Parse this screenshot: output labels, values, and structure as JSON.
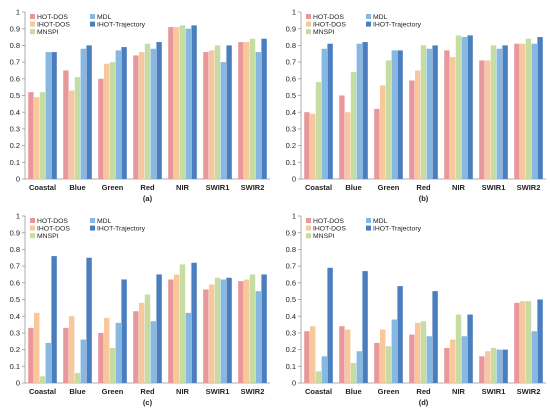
{
  "categories": [
    "Coastal",
    "Blue",
    "Green",
    "Red",
    "NIR",
    "SWIR1",
    "SWIR2"
  ],
  "chart_data": [
    {
      "type": "bar",
      "caption": "(a)",
      "categories": [
        "Coastal",
        "Blue",
        "Green",
        "Red",
        "NIR",
        "SWIR1",
        "SWIR2"
      ],
      "ylim": [
        0,
        1
      ],
      "yticks": [
        0,
        0.1,
        0.2,
        0.3,
        0.4,
        0.5,
        0.6,
        0.7,
        0.8,
        0.9,
        1
      ],
      "grid": false,
      "legend_position": "top-left",
      "series": [
        {
          "name": "HOT-DOS",
          "color": "#e8989b",
          "values": [
            0.52,
            0.65,
            0.6,
            0.74,
            0.91,
            0.76,
            0.82
          ]
        },
        {
          "name": "IHOT-DOS",
          "color": "#f8c89c",
          "values": [
            0.49,
            0.53,
            0.69,
            0.76,
            0.91,
            0.77,
            0.82
          ]
        },
        {
          "name": "MNSPI",
          "color": "#c5dca3",
          "values": [
            0.52,
            0.61,
            0.7,
            0.81,
            0.92,
            0.8,
            0.84
          ]
        },
        {
          "name": "MDL",
          "color": "#86b8e2",
          "values": [
            0.76,
            0.78,
            0.77,
            0.78,
            0.9,
            0.7,
            0.76
          ]
        },
        {
          "name": "IHOT-Trajectory",
          "color": "#4a7ebf",
          "values": [
            0.76,
            0.8,
            0.79,
            0.82,
            0.92,
            0.8,
            0.84
          ]
        }
      ]
    },
    {
      "type": "bar",
      "caption": "(b)",
      "categories": [
        "Coastal",
        "Blue",
        "Green",
        "Red",
        "NIR",
        "SWIR1",
        "SWIR2"
      ],
      "ylim": [
        0,
        1
      ],
      "yticks": [
        0,
        0.1,
        0.2,
        0.3,
        0.4,
        0.5,
        0.6,
        0.7,
        0.8,
        0.9,
        1
      ],
      "grid": false,
      "legend_position": "top-left",
      "series": [
        {
          "name": "HOT-DOS",
          "color": "#e8989b",
          "values": [
            0.4,
            0.5,
            0.42,
            0.59,
            0.77,
            0.71,
            0.81
          ]
        },
        {
          "name": "IHOT-DOS",
          "color": "#f8c89c",
          "values": [
            0.39,
            0.4,
            0.56,
            0.65,
            0.73,
            0.71,
            0.81
          ]
        },
        {
          "name": "MNSPI",
          "color": "#c5dca3",
          "values": [
            0.58,
            0.64,
            0.71,
            0.8,
            0.86,
            0.8,
            0.84
          ]
        },
        {
          "name": "MDL",
          "color": "#86b8e2",
          "values": [
            0.78,
            0.81,
            0.77,
            0.78,
            0.85,
            0.78,
            0.81
          ]
        },
        {
          "name": "IHOT-Trajectory",
          "color": "#4a7ebf",
          "values": [
            0.81,
            0.82,
            0.77,
            0.8,
            0.86,
            0.8,
            0.85
          ]
        }
      ]
    },
    {
      "type": "bar",
      "caption": "(c)",
      "categories": [
        "Coastal",
        "Blue",
        "Green",
        "Red",
        "NIR",
        "SWIR1",
        "SWIR2"
      ],
      "ylim": [
        0,
        1
      ],
      "yticks": [
        0,
        0.1,
        0.2,
        0.3,
        0.4,
        0.5,
        0.6,
        0.7,
        0.8,
        0.9,
        1
      ],
      "grid": false,
      "legend_position": "top-left",
      "series": [
        {
          "name": "HOT-DOS",
          "color": "#e8989b",
          "values": [
            0.33,
            0.33,
            0.3,
            0.43,
            0.62,
            0.56,
            0.61
          ]
        },
        {
          "name": "IHOT-DOS",
          "color": "#f8c89c",
          "values": [
            0.42,
            0.4,
            0.39,
            0.48,
            0.65,
            0.59,
            0.62
          ]
        },
        {
          "name": "MNSPI",
          "color": "#c5dca3",
          "values": [
            0.04,
            0.06,
            0.21,
            0.53,
            0.71,
            0.63,
            0.65
          ]
        },
        {
          "name": "MDL",
          "color": "#86b8e2",
          "values": [
            0.24,
            0.26,
            0.36,
            0.37,
            0.42,
            0.62,
            0.55
          ]
        },
        {
          "name": "IHOT-Trajectory",
          "color": "#4a7ebf",
          "values": [
            0.76,
            0.75,
            0.62,
            0.65,
            0.72,
            0.63,
            0.65
          ]
        }
      ]
    },
    {
      "type": "bar",
      "caption": "(d)",
      "categories": [
        "Coastal",
        "Blue",
        "Green",
        "Red",
        "NIR",
        "SWIR1",
        "SWIR2"
      ],
      "ylim": [
        0,
        1
      ],
      "yticks": [
        0,
        0.1,
        0.2,
        0.3,
        0.4,
        0.5,
        0.6,
        0.7,
        0.8,
        0.9,
        1
      ],
      "grid": false,
      "legend_position": "top-left",
      "series": [
        {
          "name": "HOT-DOS",
          "color": "#e8989b",
          "values": [
            0.31,
            0.34,
            0.24,
            0.29,
            0.21,
            0.16,
            0.48
          ]
        },
        {
          "name": "IHOT-DOS",
          "color": "#f8c89c",
          "values": [
            0.34,
            0.32,
            0.32,
            0.36,
            0.26,
            0.19,
            0.49
          ]
        },
        {
          "name": "MNSPI",
          "color": "#c5dca3",
          "values": [
            0.07,
            0.12,
            0.22,
            0.37,
            0.41,
            0.21,
            0.49
          ]
        },
        {
          "name": "MDL",
          "color": "#86b8e2",
          "values": [
            0.16,
            0.19,
            0.38,
            0.28,
            0.28,
            0.2,
            0.31
          ]
        },
        {
          "name": "IHOT-Trajectory",
          "color": "#4a7ebf",
          "values": [
            0.69,
            0.67,
            0.58,
            0.55,
            0.41,
            0.2,
            0.5
          ]
        }
      ]
    }
  ]
}
